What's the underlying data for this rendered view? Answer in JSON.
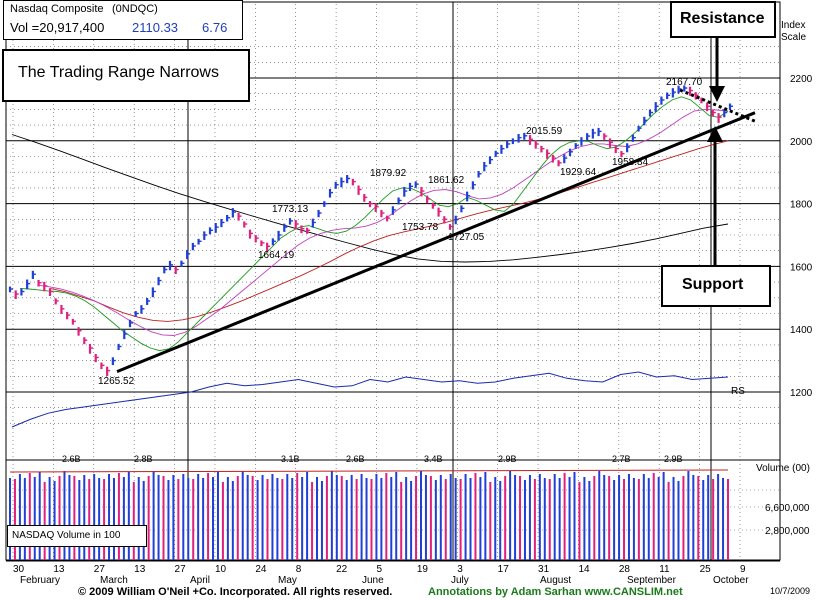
{
  "header": {
    "index_name": "Nasdaq Composite",
    "symbol": "(0NDQC)",
    "volume_label": "Vol =20,917,400",
    "price": "2110.33",
    "change": "6.76"
  },
  "annotation_title": "The Trading Range Narrows",
  "callouts": {
    "resistance": "Resistance",
    "support": "Support"
  },
  "axis": {
    "scale_line1": "Index",
    "scale_line2": "Scale",
    "volume_title": "Volume (00)",
    "rs_label": "RS"
  },
  "volume_box_label": "NASDAQ Volume in 100",
  "footer": {
    "copyright": "© 2009 William O'Neil +Co. Incorporated. All rights reserved.",
    "annotations": "Annotations by Adam Sarhan www.CANSLIM.net",
    "date": "10/7/2009"
  },
  "colors": {
    "up": "#1f3fd6",
    "down": "#e0207f",
    "ma_short": "#1a9a1a",
    "ma_mid": "#c040c0",
    "ma_50": "#c02020",
    "ma_200": "#000000",
    "rs": "#1a2ab0",
    "footer_green": "#1a7a1a"
  },
  "chart_data": {
    "type": "line",
    "title": "Nasdaq Composite",
    "y_ticks": [
      1200,
      1400,
      1600,
      1800,
      2000,
      2200
    ],
    "ylim": [
      1200,
      2310
    ],
    "x_ticks": [
      "30",
      "13",
      "27",
      "13",
      "27",
      "10",
      "24",
      "8",
      "22",
      "5",
      "19",
      "3",
      "17",
      "31",
      "14",
      "28",
      "11",
      "25",
      "9"
    ],
    "months": [
      "February",
      "March",
      "April",
      "May",
      "June",
      "July",
      "August",
      "September",
      "October"
    ],
    "annotations": [
      {
        "label": "1265.52",
        "value": 1265.52
      },
      {
        "label": "1773.13",
        "value": 1773.13
      },
      {
        "label": "1664.19",
        "value": 1664.19
      },
      {
        "label": "1879.92",
        "value": 1879.92
      },
      {
        "label": "1753.78",
        "value": 1753.78
      },
      {
        "label": "1861.62",
        "value": 1861.62
      },
      {
        "label": "1727.05",
        "value": 1727.05
      },
      {
        "label": "2015.59",
        "value": 2015.59
      },
      {
        "label": "1929.64",
        "value": 1929.64
      },
      {
        "label": "1958.84",
        "value": 1958.84
      },
      {
        "label": "2167.70",
        "value": 2167.7
      }
    ],
    "volume_labels": [
      "2.6B",
      "2.8B",
      "3.1B",
      "2.6B",
      "3.4B",
      "2.9B",
      "2.7B",
      "2.9B"
    ],
    "volume_ticks": [
      "6,600,000",
      "2,800,000"
    ],
    "price_series": [
      1528,
      1512,
      1520,
      1545,
      1575,
      1548,
      1538,
      1520,
      1490,
      1465,
      1445,
      1425,
      1395,
      1365,
      1340,
      1310,
      1285,
      1268,
      1300,
      1345,
      1385,
      1420,
      1450,
      1465,
      1490,
      1520,
      1555,
      1590,
      1605,
      1590,
      1610,
      1640,
      1665,
      1680,
      1700,
      1715,
      1725,
      1740,
      1755,
      1773,
      1760,
      1735,
      1705,
      1690,
      1675,
      1664,
      1680,
      1700,
      1725,
      1745,
      1735,
      1720,
      1715,
      1740,
      1770,
      1800,
      1835,
      1860,
      1870,
      1880,
      1870,
      1845,
      1820,
      1800,
      1790,
      1770,
      1754,
      1780,
      1810,
      1840,
      1855,
      1862,
      1840,
      1815,
      1795,
      1775,
      1750,
      1727,
      1750,
      1785,
      1825,
      1860,
      1895,
      1920,
      1940,
      1960,
      1975,
      1990,
      2000,
      2010,
      2016,
      2005,
      1990,
      1975,
      1960,
      1945,
      1930,
      1945,
      1965,
      1985,
      2000,
      2015,
      2025,
      2030,
      2015,
      1995,
      1975,
      1959,
      1980,
      2010,
      2040,
      2065,
      2090,
      2110,
      2130,
      2145,
      2155,
      2165,
      2168,
      2160,
      2145,
      2130,
      2110,
      2090,
      2075,
      2090,
      2110
    ],
    "ma_short": [
      1530,
      1528,
      1525,
      1522,
      1520,
      1515,
      1505,
      1490,
      1470,
      1445,
      1420,
      1395,
      1375,
      1355,
      1340,
      1332,
      1338,
      1360,
      1390,
      1420,
      1450,
      1480,
      1510,
      1540,
      1570,
      1600,
      1630,
      1660,
      1690,
      1710,
      1725,
      1730,
      1720,
      1710,
      1705,
      1712,
      1730,
      1755,
      1785,
      1815,
      1840,
      1850,
      1848,
      1835,
      1815,
      1795,
      1790,
      1800,
      1820,
      1810,
      1795,
      1780,
      1775,
      1800,
      1840,
      1880,
      1920,
      1955,
      1980,
      1995,
      2000,
      1998,
      1985,
      1975,
      1980,
      2000,
      2025,
      2055,
      2085,
      2110,
      2130,
      2140,
      2130,
      2105,
      2080,
      2075,
      2095
    ],
    "ma_mid": [
      1540,
      1535,
      1528,
      1518,
      1505,
      1490,
      1472,
      1452,
      1430,
      1410,
      1392,
      1382,
      1380,
      1390,
      1410,
      1435,
      1460,
      1490,
      1520,
      1550,
      1580,
      1610,
      1640,
      1668,
      1690,
      1705,
      1715,
      1720,
      1722,
      1728,
      1740,
      1760,
      1785,
      1810,
      1830,
      1842,
      1845,
      1838,
      1825,
      1815,
      1818,
      1830,
      1850,
      1875,
      1900,
      1925,
      1948,
      1968,
      1982,
      1990,
      1990,
      1985,
      1982,
      1990,
      2005,
      2025,
      2050,
      2075,
      2095,
      2100,
      2098,
      2095
    ],
    "ma_50": [
      1530,
      1520,
      1505,
      1490,
      1470,
      1452,
      1438,
      1428,
      1425,
      1430,
      1440,
      1455,
      1472,
      1490,
      1510,
      1530,
      1550,
      1570,
      1592,
      1615,
      1640,
      1662,
      1682,
      1698,
      1710,
      1720,
      1730,
      1742,
      1755,
      1768,
      1780,
      1790,
      1800,
      1812,
      1825,
      1840,
      1855,
      1870,
      1885,
      1900,
      1915,
      1930,
      1945,
      1960,
      1975,
      1988,
      2000
    ],
    "ma_200": [
      2020,
      1995,
      1968,
      1940,
      1912,
      1885,
      1858,
      1832,
      1808,
      1785,
      1762,
      1740,
      1718,
      1697,
      1676,
      1656,
      1638,
      1624,
      1616,
      1614,
      1616,
      1621,
      1629,
      1638,
      1648,
      1660,
      1673,
      1688,
      1705,
      1722,
      1735
    ],
    "rs_series": [
      1172,
      1178,
      1183,
      1186,
      1188,
      1190,
      1192,
      1194,
      1196,
      1198,
      1200,
      1204,
      1207,
      1205,
      1206,
      1208,
      1210,
      1207,
      1204,
      1205,
      1210,
      1208,
      1212,
      1210,
      1208,
      1209,
      1207,
      1208,
      1211,
      1213,
      1215,
      1211,
      1209,
      1208,
      1214,
      1216,
      1212,
      1213,
      1210,
      1211,
      1212
    ],
    "trendline_support": [
      1265,
      2080
    ],
    "trendline_resistance": [
      2168,
      2080
    ]
  }
}
